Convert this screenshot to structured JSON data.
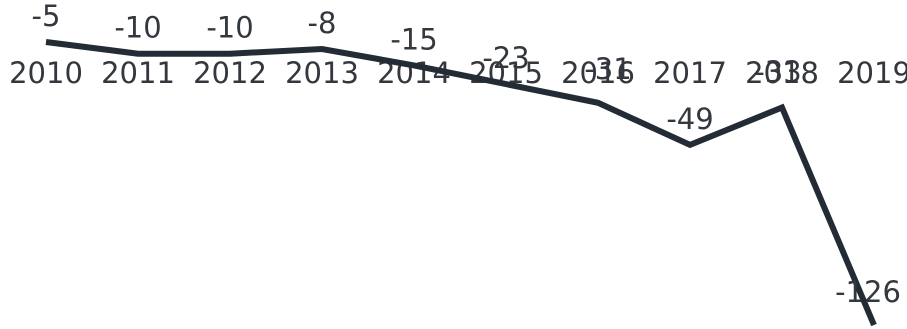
{
  "chart_data": {
    "type": "line",
    "title": "",
    "xlabel": "",
    "ylabel": "",
    "x": [
      "2010",
      "2011",
      "2012",
      "2013",
      "2014",
      "2015",
      "2016",
      "2017",
      "2018",
      "2019"
    ],
    "series": [
      {
        "values": [
          -5,
          -10,
          -10,
          -8,
          -15,
          -23,
          -31,
          -49,
          -33,
          -126
        ],
        "labels": [
          "-5",
          "-10",
          "-10",
          "-8",
          "-15",
          "-23",
          "-31",
          "-49",
          "-33",
          "-126"
        ]
      }
    ],
    "ylim": [
      -126,
      -5
    ],
    "grid": false,
    "legend": "none",
    "colors": {
      "line": "#232b35",
      "text": "#33373e"
    }
  }
}
